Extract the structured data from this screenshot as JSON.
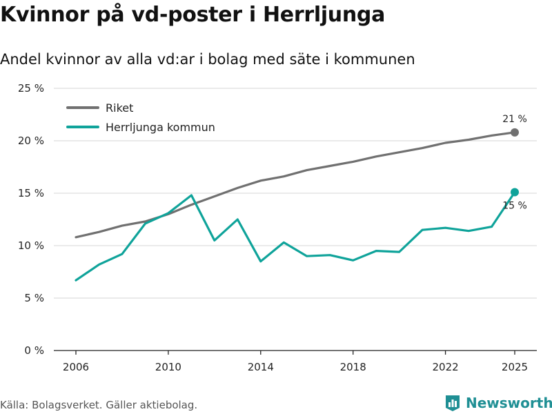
{
  "header": {
    "title": "Kvinnor på vd-poster i Herrljunga",
    "subtitle": "Andel kvinnor av alla vd:ar i bolag med säte i kommunen"
  },
  "footer": {
    "source": "Källa: Bolagsverket. Gäller aktiebolag.",
    "brand": "Newsworthy",
    "brand_icon": "newsworthy-logo-icon"
  },
  "colors": {
    "riket": "#707070",
    "herrljunga": "#0fa39a",
    "grid": "#dedede",
    "brand": "#1f8f94"
  },
  "chart_data": {
    "type": "line",
    "title": "Kvinnor på vd-poster i Herrljunga",
    "subtitle": "Andel kvinnor av alla vd:ar i bolag med säte i kommunen",
    "x": [
      2006,
      2007,
      2008,
      2009,
      2010,
      2011,
      2012,
      2013,
      2014,
      2015,
      2016,
      2017,
      2018,
      2019,
      2020,
      2021,
      2022,
      2023,
      2024,
      2025
    ],
    "xlim": [
      2006,
      2025
    ],
    "ylim": [
      0,
      25
    ],
    "x_ticks": [
      {
        "value": 2006,
        "label": "2006"
      },
      {
        "value": 2010,
        "label": "2010"
      },
      {
        "value": 2014,
        "label": "2014"
      },
      {
        "value": 2018,
        "label": "2018"
      },
      {
        "value": 2022,
        "label": "2022"
      },
      {
        "value": 2025,
        "label": "2025"
      }
    ],
    "y_ticks": [
      {
        "value": 0,
        "label": "0 %"
      },
      {
        "value": 5,
        "label": "5 %"
      },
      {
        "value": 10,
        "label": "10 %"
      },
      {
        "value": 15,
        "label": "15 %"
      },
      {
        "value": 20,
        "label": "20 %"
      },
      {
        "value": 25,
        "label": "25 %"
      }
    ],
    "grid": true,
    "legend_position": "top-left",
    "series": [
      {
        "name": "Riket",
        "color": "#707070",
        "values": [
          10.8,
          11.3,
          11.9,
          12.3,
          13.0,
          13.9,
          14.7,
          15.5,
          16.2,
          16.6,
          17.2,
          17.6,
          18.0,
          18.5,
          18.9,
          19.3,
          19.8,
          20.1,
          20.5,
          20.8
        ],
        "end_label": "21 %"
      },
      {
        "name": "Herrljunga kommun",
        "color": "#0fa39a",
        "values": [
          6.7,
          8.2,
          9.2,
          12.1,
          13.1,
          14.8,
          10.5,
          12.5,
          8.5,
          10.3,
          9.0,
          9.1,
          8.6,
          9.5,
          9.4,
          11.5,
          11.7,
          11.4,
          11.8,
          15.1
        ],
        "end_label": "15 %"
      }
    ]
  }
}
